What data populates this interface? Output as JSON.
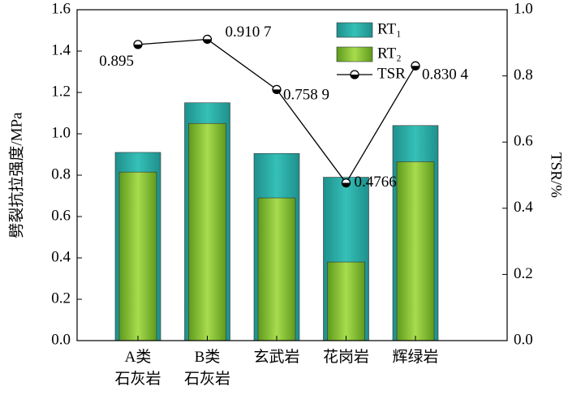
{
  "chart_data": {
    "type": "bar_line",
    "categories": [
      "A类\n石灰岩",
      "B类\n石灰岩",
      "玄武岩",
      "花岗岩",
      "辉绿岩"
    ],
    "series": [
      {
        "name": "RT₁",
        "color": "#23a9a4",
        "values": [
          0.91,
          1.15,
          0.905,
          0.79,
          1.04
        ]
      },
      {
        "name": "RT₂",
        "color": "#7fbf2e",
        "values": [
          0.815,
          1.05,
          0.69,
          0.38,
          0.865
        ]
      },
      {
        "name": "TSR",
        "color": "#000000",
        "axis": "y2",
        "values": [
          0.895,
          0.9107,
          0.7589,
          0.4766,
          0.8304
        ],
        "value_labels": [
          "0.895",
          "0.910 7",
          "0.758 9",
          "0.4766",
          "0.830 4"
        ]
      }
    ],
    "ylabel": "劈裂抗拉强度/MPa",
    "y2label": "TSR/%",
    "ylim": [
      0,
      1.6
    ],
    "yticks": [
      {
        "value": 0,
        "label": "0.0"
      },
      0.2,
      0.4,
      0.6,
      0.8,
      {
        "value": 1,
        "label": "1.0"
      },
      1.2,
      1.4,
      1.6
    ],
    "y2lim": [
      0,
      1.0
    ],
    "y2ticks": [
      {
        "value": 0,
        "label": "0.0"
      },
      0.2,
      0.4,
      0.6,
      0.8,
      {
        "value": 1,
        "label": "1.0"
      }
    ]
  }
}
